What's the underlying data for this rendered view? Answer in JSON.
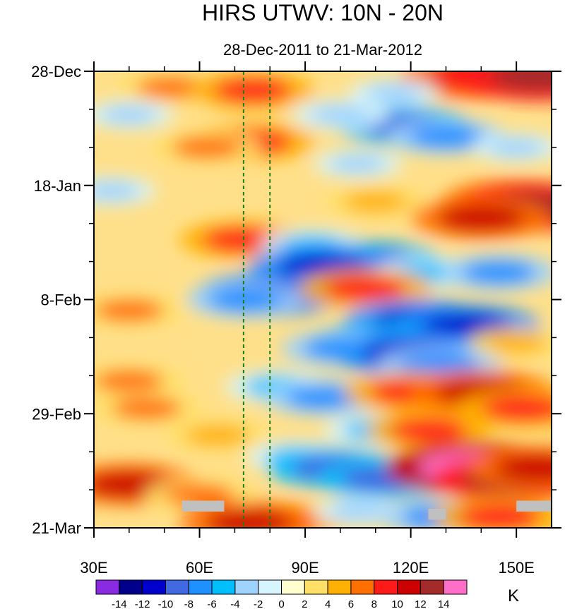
{
  "chart_data": {
    "type": "heatmap",
    "title": "HIRS UTWV: 10N - 20N",
    "subtitle": "28-Dec-2011 to 21-Mar-2012",
    "x_range": [
      30,
      160
    ],
    "x_ticks": [
      {
        "value": 30,
        "label": "30E"
      },
      {
        "value": 60,
        "label": "60E"
      },
      {
        "value": 90,
        "label": "90E"
      },
      {
        "value": 120,
        "label": "120E"
      },
      {
        "value": 150,
        "label": "150E"
      }
    ],
    "y_range_days": [
      0,
      84
    ],
    "y_ticks": [
      {
        "day": 0,
        "label": "28-Dec"
      },
      {
        "day": 21,
        "label": "18-Jan"
      },
      {
        "day": 42,
        "label": "8-Feb"
      },
      {
        "day": 63,
        "label": "29-Feb"
      },
      {
        "day": 84,
        "label": "21-Mar"
      }
    ],
    "reference_lines_lon": [
      72.5,
      80
    ],
    "colorbar": {
      "levels": [
        -14,
        -12,
        -10,
        -8,
        -6,
        -4,
        -2,
        0,
        2,
        4,
        6,
        8,
        10,
        12,
        14
      ],
      "colors": [
        "#8a2be2",
        "#00008b",
        "#0000cd",
        "#4169e1",
        "#1e90ff",
        "#00bfff",
        "#9fd3ff",
        "#d6f5ff",
        "#ffffd0",
        "#ffe066",
        "#ffb000",
        "#ff7000",
        "#ff1a1a",
        "#cc0000",
        "#a52a2a",
        "#ff6ec7"
      ],
      "units": "K"
    },
    "anomaly_features": [
      {
        "lon": 138,
        "day": 1,
        "value": 11
      },
      {
        "lon": 150,
        "day": 0.5,
        "value": 13
      },
      {
        "lon": 157,
        "day": 1,
        "value": 13
      },
      {
        "lon": 52,
        "day": 3,
        "value": 6
      },
      {
        "lon": 75,
        "day": 3.5,
        "value": 8
      },
      {
        "lon": 115,
        "day": 4,
        "value": -3
      },
      {
        "lon": 40,
        "day": 8,
        "value": -3
      },
      {
        "lon": 118,
        "day": 10,
        "value": -9
      },
      {
        "lon": 130,
        "day": 12,
        "value": -7
      },
      {
        "lon": 100,
        "day": 8,
        "value": -4
      },
      {
        "lon": 75,
        "day": 13,
        "value": 8
      },
      {
        "lon": 62,
        "day": 14,
        "value": 6
      },
      {
        "lon": 150,
        "day": 14,
        "value": -3
      },
      {
        "lon": 105,
        "day": 17,
        "value": -3
      },
      {
        "lon": 35,
        "day": 22,
        "value": -3
      },
      {
        "lon": 110,
        "day": 24,
        "value": 5
      },
      {
        "lon": 150,
        "day": 24,
        "value": 11
      },
      {
        "lon": 155,
        "day": 25,
        "value": 13
      },
      {
        "lon": 140,
        "day": 27,
        "value": 10
      },
      {
        "lon": 72,
        "day": 31,
        "value": 8
      },
      {
        "lon": 92,
        "day": 32,
        "value": -5
      },
      {
        "lon": 110,
        "day": 35,
        "value": -9
      },
      {
        "lon": 95,
        "day": 36,
        "value": -11
      },
      {
        "lon": 125,
        "day": 37,
        "value": -5
      },
      {
        "lon": 145,
        "day": 37,
        "value": -7
      },
      {
        "lon": 80,
        "day": 41,
        "value": -11
      },
      {
        "lon": 73,
        "day": 42,
        "value": -7
      },
      {
        "lon": 107,
        "day": 40,
        "value": 9
      },
      {
        "lon": 40,
        "day": 44,
        "value": 6
      },
      {
        "lon": 122,
        "day": 46,
        "value": -11
      },
      {
        "lon": 136,
        "day": 47,
        "value": -11
      },
      {
        "lon": 110,
        "day": 50,
        "value": -9
      },
      {
        "lon": 100,
        "day": 51,
        "value": -7
      },
      {
        "lon": 120,
        "day": 52,
        "value": -12
      },
      {
        "lon": 128,
        "day": 54,
        "value": -8
      },
      {
        "lon": 150,
        "day": 50,
        "value": 4
      },
      {
        "lon": 40,
        "day": 57,
        "value": 6
      },
      {
        "lon": 82,
        "day": 58,
        "value": -5
      },
      {
        "lon": 95,
        "day": 60,
        "value": -7
      },
      {
        "lon": 120,
        "day": 59,
        "value": 9
      },
      {
        "lon": 140,
        "day": 59,
        "value": 11
      },
      {
        "lon": 152,
        "day": 62,
        "value": 9
      },
      {
        "lon": 45,
        "day": 62,
        "value": 6
      },
      {
        "lon": 65,
        "day": 67,
        "value": 5
      },
      {
        "lon": 110,
        "day": 66,
        "value": -5
      },
      {
        "lon": 125,
        "day": 66,
        "value": 8
      },
      {
        "lon": 88,
        "day": 71,
        "value": -5
      },
      {
        "lon": 98,
        "day": 73,
        "value": -9
      },
      {
        "lon": 112,
        "day": 75,
        "value": -9
      },
      {
        "lon": 138,
        "day": 73,
        "value": 15
      },
      {
        "lon": 148,
        "day": 75,
        "value": 12
      },
      {
        "lon": 157,
        "day": 73,
        "value": 11
      },
      {
        "lon": 40,
        "day": 76,
        "value": 10
      },
      {
        "lon": 60,
        "day": 78,
        "value": 6
      },
      {
        "lon": 82,
        "day": 83,
        "value": 9
      },
      {
        "lon": 74,
        "day": 83,
        "value": 10
      },
      {
        "lon": 105,
        "day": 81,
        "value": -3
      },
      {
        "lon": 128,
        "day": 82,
        "value": -7
      },
      {
        "lon": 145,
        "day": 82,
        "value": 9
      }
    ],
    "missing_data_boxes": [
      {
        "lon0": 55,
        "lon1": 67,
        "day0": 79,
        "day1": 81
      },
      {
        "lon0": 125,
        "lon1": 130,
        "day0": 80.5,
        "day1": 82.5
      },
      {
        "lon0": 150,
        "lon1": 160,
        "day0": 79,
        "day1": 81
      }
    ]
  }
}
